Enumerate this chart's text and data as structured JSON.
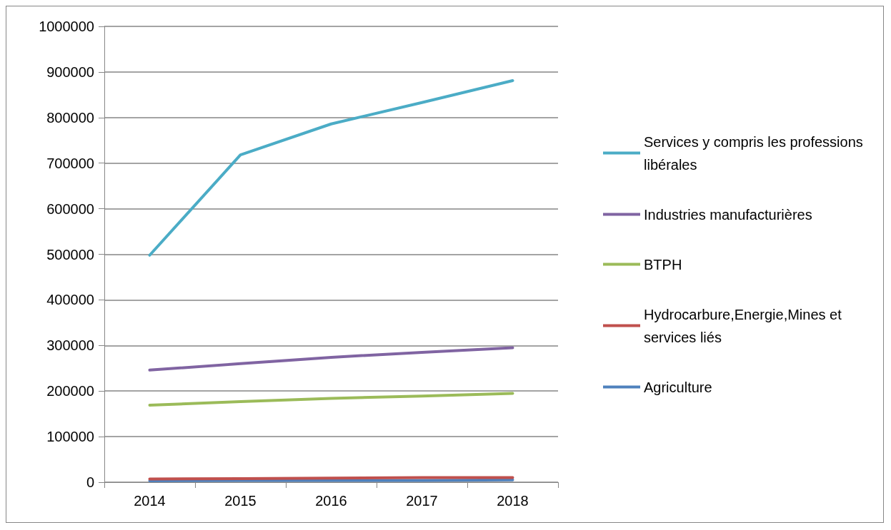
{
  "chart_data": {
    "type": "line",
    "categories": [
      "2014",
      "2015",
      "2016",
      "2017",
      "2018"
    ],
    "series": [
      {
        "name": "Services y compris les professions libérales",
        "color": "#4bacc6",
        "values": [
          498000,
          718000,
          786000,
          833000,
          881000
        ]
      },
      {
        "name": "Industries manufacturières",
        "color": "#8064a2",
        "values": [
          246000,
          260000,
          274000,
          285000,
          295000
        ]
      },
      {
        "name": "BTPH",
        "color": "#9bbb59",
        "values": [
          169000,
          177000,
          184000,
          189000,
          195000
        ]
      },
      {
        "name": "Hydrocarbure,Energie,Mines et services liés",
        "color": "#c0504d",
        "values": [
          7000,
          8000,
          9000,
          10000,
          10000
        ]
      },
      {
        "name": "Agriculture",
        "color": "#4f81bd",
        "values": [
          3000,
          4000,
          4000,
          4000,
          5000
        ]
      }
    ],
    "ylim": [
      0,
      1000000
    ],
    "yticks": [
      0,
      100000,
      200000,
      300000,
      400000,
      500000,
      600000,
      700000,
      800000,
      900000,
      1000000
    ],
    "grid": "y",
    "legend": "right",
    "marker": "none",
    "line_style": "solid"
  }
}
